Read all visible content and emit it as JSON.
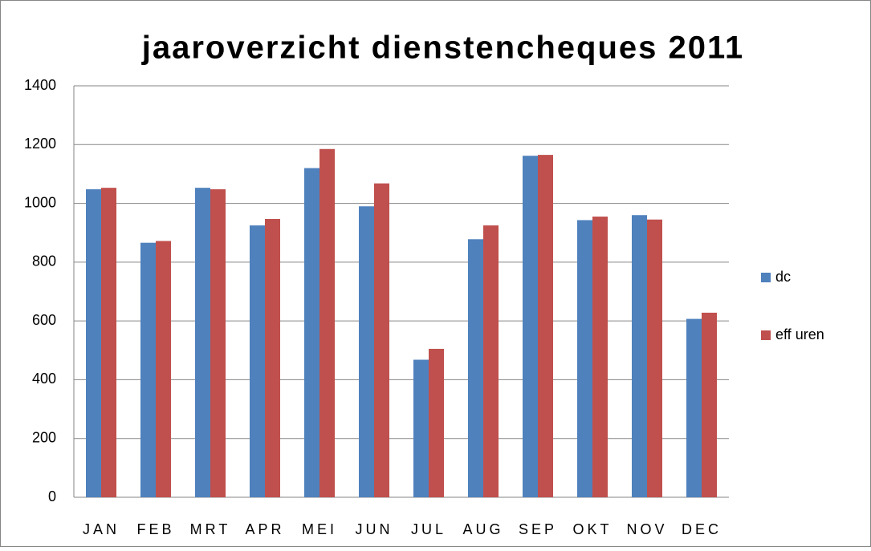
{
  "chart_data": {
    "type": "bar",
    "title": "jaaroverzicht dienstencheques 2011",
    "categories": [
      "JAN",
      "FEB",
      "MRT",
      "APR",
      "MEI",
      "JUN",
      "JUL",
      "AUG",
      "SEP",
      "OKT",
      "NOV",
      "DEC"
    ],
    "series": [
      {
        "name": "dc",
        "color": "#4f81bd",
        "values": [
          1048,
          866,
          1053,
          925,
          1120,
          990,
          468,
          878,
          1162,
          943,
          960,
          607
        ]
      },
      {
        "name": "eff uren",
        "color": "#c0504d",
        "values": [
          1053,
          872,
          1048,
          947,
          1185,
          1068,
          505,
          925,
          1165,
          955,
          945,
          628
        ]
      }
    ],
    "ylim": [
      0,
      1400
    ],
    "yticks": [
      0,
      200,
      400,
      600,
      800,
      1000,
      1200,
      1400
    ],
    "grid": true,
    "legend": "right"
  }
}
